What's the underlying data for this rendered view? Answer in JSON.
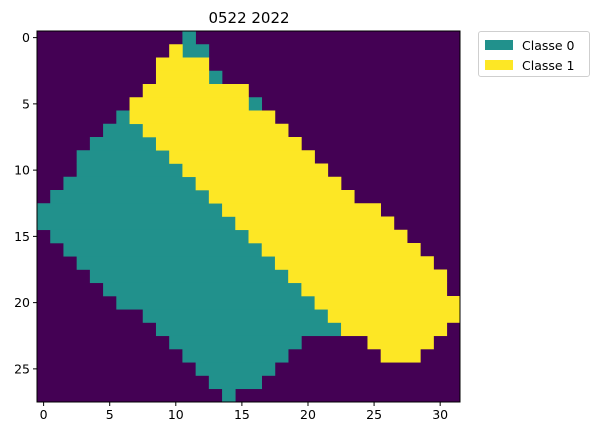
{
  "chart_data": {
    "type": "heatmap",
    "title": "0522 2022",
    "xlabel": "",
    "ylabel": "",
    "grid_size": {
      "rows": 28,
      "cols": 32
    },
    "x_ticks": [
      0,
      5,
      10,
      15,
      20,
      25,
      30
    ],
    "y_ticks": [
      0,
      5,
      10,
      15,
      20,
      25
    ],
    "grid": false,
    "legend_position": "outside top-right",
    "background_color": "#440154",
    "classes": [
      {
        "name": "Classe 0",
        "value": 0,
        "color": "#21918c"
      },
      {
        "name": "Classe 1",
        "value": 1,
        "color": "#fde725"
      }
    ],
    "class0_runs": [
      [
        0,
        11,
        11
      ],
      [
        1,
        11,
        12
      ],
      [
        3,
        13,
        13
      ],
      [
        5,
        16,
        16
      ],
      [
        6,
        6,
        6
      ],
      [
        7,
        5,
        7
      ],
      [
        8,
        4,
        8
      ],
      [
        9,
        3,
        9
      ],
      [
        10,
        3,
        10
      ],
      [
        11,
        2,
        11
      ],
      [
        12,
        1,
        12
      ],
      [
        13,
        0,
        13
      ],
      [
        14,
        0,
        14
      ],
      [
        15,
        1,
        15
      ],
      [
        16,
        2,
        16
      ],
      [
        17,
        3,
        17
      ],
      [
        18,
        4,
        18
      ],
      [
        19,
        5,
        19
      ],
      [
        20,
        6,
        20
      ],
      [
        21,
        8,
        21
      ],
      [
        22,
        9,
        22
      ],
      [
        23,
        10,
        19
      ],
      [
        24,
        11,
        18
      ],
      [
        25,
        12,
        17
      ],
      [
        26,
        13,
        16
      ],
      [
        27,
        14,
        14
      ]
    ],
    "class1_runs": [
      [
        1,
        10,
        10
      ],
      [
        2,
        9,
        12
      ],
      [
        3,
        9,
        12
      ],
      [
        4,
        8,
        15
      ],
      [
        5,
        7,
        15
      ],
      [
        6,
        7,
        17
      ],
      [
        7,
        8,
        18
      ],
      [
        8,
        9,
        19
      ],
      [
        9,
        10,
        20
      ],
      [
        10,
        11,
        21
      ],
      [
        11,
        12,
        22
      ],
      [
        12,
        13,
        23
      ],
      [
        13,
        14,
        25
      ],
      [
        14,
        15,
        26
      ],
      [
        15,
        16,
        27
      ],
      [
        16,
        17,
        28
      ],
      [
        17,
        18,
        29
      ],
      [
        18,
        19,
        30
      ],
      [
        19,
        20,
        30
      ],
      [
        20,
        21,
        31
      ],
      [
        21,
        22,
        31
      ],
      [
        22,
        23,
        30
      ],
      [
        23,
        25,
        29
      ],
      [
        24,
        26,
        28
      ]
    ]
  }
}
